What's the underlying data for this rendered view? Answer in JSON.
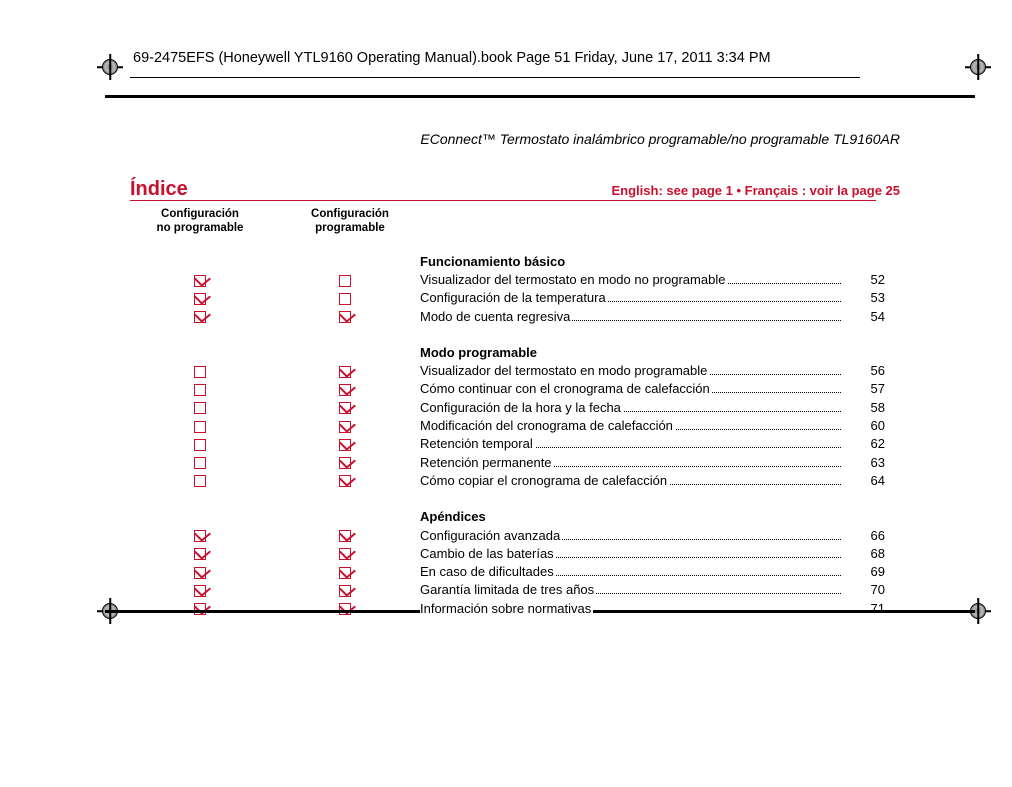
{
  "header": {
    "book_line": "69-2475EFS (Honeywell YTL9160 Operating Manual).book  Page 51  Friday, June 17, 2011  3:34 PM",
    "product_line": "EConnect™ Termostato inalámbrico programable/no programable TL9160AR",
    "section_title": "Índice",
    "lang_line": "English: see page 1   •   Français : voir la page 25",
    "page_number": "51"
  },
  "columns": {
    "col1_line1": "Configuración",
    "col1_line2": "no programable",
    "col2_line1": "Configuración",
    "col2_line2": "programable"
  },
  "colors": {
    "accent": "#c8102e",
    "text": "#000000"
  },
  "sections": [
    {
      "heading": "Funcionamiento básico",
      "rows": [
        {
          "np": true,
          "p": false,
          "label": "Visualizador del termostato en modo no programable",
          "page": "52"
        },
        {
          "np": true,
          "p": false,
          "label": "Configuración de la temperatura",
          "page": "53"
        },
        {
          "np": true,
          "p": true,
          "label": "Modo de cuenta regresiva",
          "page": "54"
        }
      ]
    },
    {
      "heading": "Modo programable",
      "rows": [
        {
          "np": false,
          "p": true,
          "label": "Visualizador del termostato en modo programable",
          "page": "56"
        },
        {
          "np": false,
          "p": true,
          "label": "Cómo continuar con el cronograma de calefacción",
          "page": "57"
        },
        {
          "np": false,
          "p": true,
          "label": "Configuración de la hora y la fecha",
          "page": "58"
        },
        {
          "np": false,
          "p": true,
          "label": "Modificación del cronograma de calefacción",
          "page": "60"
        },
        {
          "np": false,
          "p": true,
          "label": "Retención temporal",
          "page": "62"
        },
        {
          "np": false,
          "p": true,
          "label": "Retención permanente",
          "page": "63"
        },
        {
          "np": false,
          "p": true,
          "label": "Cómo copiar el cronograma de calefacción",
          "page": "64"
        }
      ]
    },
    {
      "heading": "Apéndices",
      "rows": [
        {
          "np": true,
          "p": true,
          "label": "Configuración avanzada",
          "page": "66"
        },
        {
          "np": true,
          "p": true,
          "label": "Cambio de las baterías",
          "page": "68"
        },
        {
          "np": true,
          "p": true,
          "label": "En caso de dificultades",
          "page": "69"
        },
        {
          "np": true,
          "p": true,
          "label": "Garantía limitada de tres años",
          "page": "70"
        },
        {
          "np": true,
          "p": true,
          "label": "Información sobre normativas",
          "page": "71"
        }
      ]
    }
  ]
}
